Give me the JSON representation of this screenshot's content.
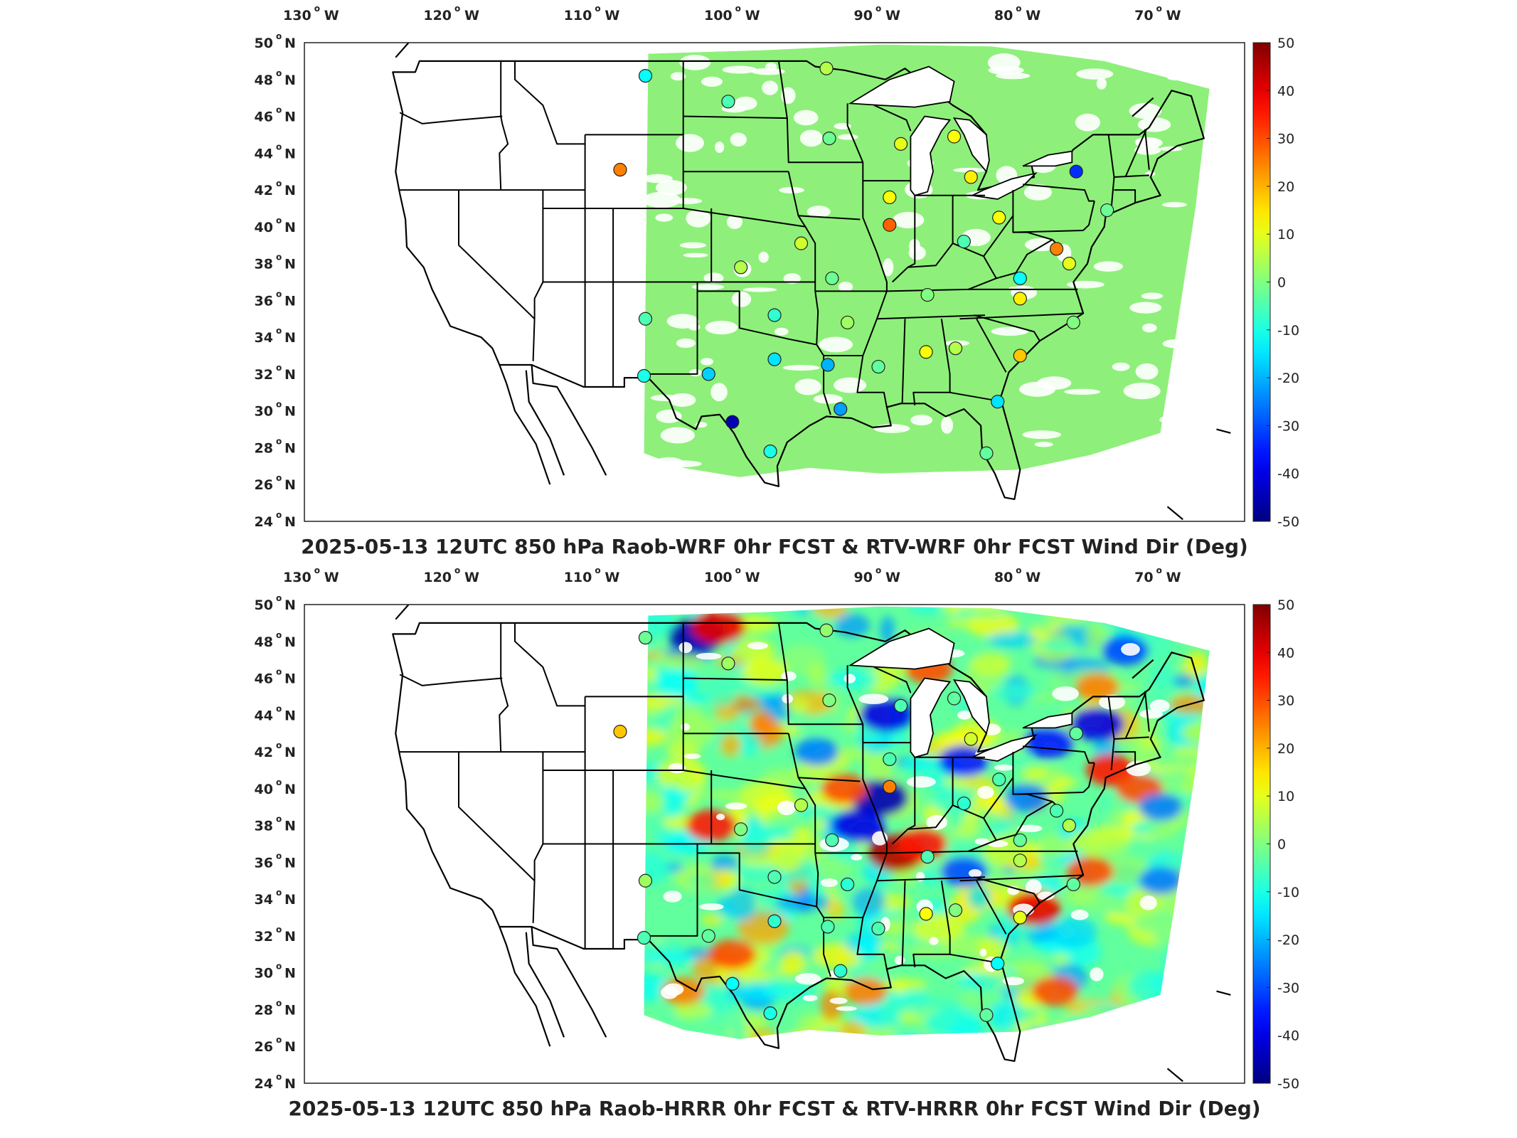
{
  "panels": [
    {
      "id": "top",
      "title": "2025-05-13 12UTC 850 hPa Raob-WRF 0hr FCST & RTV-WRF 0hr FCST Wind Dir (Deg)",
      "field_style": "uniform",
      "field_color": "#8ef07a",
      "stations": [
        {
          "lon": -106.7,
          "lat": 48.2,
          "v": -12
        },
        {
          "lon": -100.8,
          "lat": 46.8,
          "v": -5
        },
        {
          "lon": -108.5,
          "lat": 43.1,
          "v": 25
        },
        {
          "lon": -93.6,
          "lat": 44.8,
          "v": -2
        },
        {
          "lon": -93.8,
          "lat": 48.6,
          "v": 5
        },
        {
          "lon": -88.5,
          "lat": 44.5,
          "v": 10
        },
        {
          "lon": -84.7,
          "lat": 44.9,
          "v": 12
        },
        {
          "lon": -83.5,
          "lat": 42.7,
          "v": 14
        },
        {
          "lon": -76.0,
          "lat": 43.0,
          "v": -33
        },
        {
          "lon": -89.3,
          "lat": 41.6,
          "v": 12
        },
        {
          "lon": -89.3,
          "lat": 40.1,
          "v": 28
        },
        {
          "lon": -81.5,
          "lat": 40.5,
          "v": 12
        },
        {
          "lon": -84.0,
          "lat": 39.2,
          "v": -5
        },
        {
          "lon": -77.4,
          "lat": 38.8,
          "v": 25
        },
        {
          "lon": -76.5,
          "lat": 38.0,
          "v": 10
        },
        {
          "lon": -95.6,
          "lat": 39.1,
          "v": 8
        },
        {
          "lon": -99.9,
          "lat": 37.8,
          "v": 5
        },
        {
          "lon": -93.4,
          "lat": 37.2,
          "v": -2
        },
        {
          "lon": -80.0,
          "lat": 37.2,
          "v": -12
        },
        {
          "lon": -86.6,
          "lat": 36.3,
          "v": 0
        },
        {
          "lon": -80.0,
          "lat": 36.1,
          "v": 14
        },
        {
          "lon": -76.2,
          "lat": 34.8,
          "v": 0
        },
        {
          "lon": -106.7,
          "lat": 35.0,
          "v": -5
        },
        {
          "lon": -97.5,
          "lat": 35.2,
          "v": -8
        },
        {
          "lon": -92.3,
          "lat": 34.8,
          "v": 3
        },
        {
          "lon": -86.7,
          "lat": 33.2,
          "v": 12
        },
        {
          "lon": -84.6,
          "lat": 33.4,
          "v": 5
        },
        {
          "lon": -80.0,
          "lat": 33.0,
          "v": 18
        },
        {
          "lon": -106.8,
          "lat": 31.9,
          "v": -10
        },
        {
          "lon": -102.2,
          "lat": 32.0,
          "v": -17
        },
        {
          "lon": -97.5,
          "lat": 32.8,
          "v": -15
        },
        {
          "lon": -93.7,
          "lat": 32.5,
          "v": -20
        },
        {
          "lon": -90.1,
          "lat": 32.4,
          "v": -3
        },
        {
          "lon": -100.5,
          "lat": 29.4,
          "v": -45
        },
        {
          "lon": -92.8,
          "lat": 30.1,
          "v": -22
        },
        {
          "lon": -97.8,
          "lat": 27.8,
          "v": -10
        },
        {
          "lon": -81.6,
          "lat": 30.5,
          "v": -15
        },
        {
          "lon": -82.4,
          "lat": 27.7,
          "v": -3
        },
        {
          "lon": -73.8,
          "lat": 40.9,
          "v": -2
        }
      ]
    },
    {
      "id": "bottom",
      "title": "2025-05-13 12UTC 850 hPa Raob-HRRR 0hr FCST & RTV-HRRR 0hr FCST Wind Dir (Deg)",
      "field_style": "noisy",
      "stations": [
        {
          "lon": -106.7,
          "lat": 48.2,
          "v": -2
        },
        {
          "lon": -100.8,
          "lat": 46.8,
          "v": 3
        },
        {
          "lon": -108.5,
          "lat": 43.1,
          "v": 18
        },
        {
          "lon": -93.6,
          "lat": 44.8,
          "v": 0
        },
        {
          "lon": -93.8,
          "lat": 48.6,
          "v": 2
        },
        {
          "lon": -88.5,
          "lat": 44.5,
          "v": -5
        },
        {
          "lon": -84.7,
          "lat": 44.9,
          "v": -3
        },
        {
          "lon": -83.5,
          "lat": 42.7,
          "v": 8
        },
        {
          "lon": -76.0,
          "lat": 43.0,
          "v": -3
        },
        {
          "lon": -89.3,
          "lat": 41.6,
          "v": -5
        },
        {
          "lon": -89.3,
          "lat": 40.1,
          "v": 25
        },
        {
          "lon": -81.5,
          "lat": 40.5,
          "v": -5
        },
        {
          "lon": -84.0,
          "lat": 39.2,
          "v": -8
        },
        {
          "lon": -77.4,
          "lat": 38.8,
          "v": -5
        },
        {
          "lon": -76.5,
          "lat": 38.0,
          "v": 5
        },
        {
          "lon": -95.6,
          "lat": 39.1,
          "v": 5
        },
        {
          "lon": -99.9,
          "lat": 37.8,
          "v": 0
        },
        {
          "lon": -93.4,
          "lat": 37.2,
          "v": -5
        },
        {
          "lon": -80.0,
          "lat": 37.2,
          "v": -3
        },
        {
          "lon": -86.6,
          "lat": 36.3,
          "v": -5
        },
        {
          "lon": -80.0,
          "lat": 36.1,
          "v": 5
        },
        {
          "lon": -76.2,
          "lat": 34.8,
          "v": -3
        },
        {
          "lon": -106.7,
          "lat": 35.0,
          "v": 3
        },
        {
          "lon": -97.5,
          "lat": 35.2,
          "v": -5
        },
        {
          "lon": -92.3,
          "lat": 34.8,
          "v": -8
        },
        {
          "lon": -86.7,
          "lat": 33.2,
          "v": 12
        },
        {
          "lon": -84.6,
          "lat": 33.4,
          "v": 0
        },
        {
          "lon": -80.0,
          "lat": 33.0,
          "v": 10
        },
        {
          "lon": -106.8,
          "lat": 31.9,
          "v": -5
        },
        {
          "lon": -102.2,
          "lat": 32.0,
          "v": -3
        },
        {
          "lon": -97.5,
          "lat": 32.8,
          "v": -8
        },
        {
          "lon": -93.7,
          "lat": 32.5,
          "v": -5
        },
        {
          "lon": -90.1,
          "lat": 32.4,
          "v": -5
        },
        {
          "lon": -100.5,
          "lat": 29.4,
          "v": -12
        },
        {
          "lon": -92.8,
          "lat": 30.1,
          "v": -8
        },
        {
          "lon": -97.8,
          "lat": 27.8,
          "v": -10
        },
        {
          "lon": -81.6,
          "lat": 30.5,
          "v": -12
        },
        {
          "lon": -82.4,
          "lat": 27.7,
          "v": -3
        }
      ],
      "hotspots": [
        {
          "lon": -103.0,
          "lat": 48.3,
          "v": -45
        },
        {
          "lon": -101.5,
          "lat": 48.8,
          "v": 40
        },
        {
          "lon": -90.0,
          "lat": 39.5,
          "v": -45
        },
        {
          "lon": -88.8,
          "lat": 36.5,
          "v": 45
        },
        {
          "lon": -91.5,
          "lat": 38.0,
          "v": -40
        },
        {
          "lon": -87.0,
          "lat": 37.0,
          "v": 35
        },
        {
          "lon": -92.5,
          "lat": 40.0,
          "v": 30
        },
        {
          "lon": -89.5,
          "lat": 44.0,
          "v": -40
        },
        {
          "lon": -84.0,
          "lat": 41.5,
          "v": -35
        },
        {
          "lon": -78.0,
          "lat": 42.5,
          "v": -35
        },
        {
          "lon": -74.5,
          "lat": 43.5,
          "v": -40
        },
        {
          "lon": -73.5,
          "lat": 41.0,
          "v": 35
        },
        {
          "lon": -71.5,
          "lat": 40.0,
          "v": 30
        },
        {
          "lon": -70.0,
          "lat": 39.0,
          "v": -25
        },
        {
          "lon": -72.5,
          "lat": 47.5,
          "v": -30
        },
        {
          "lon": -74.5,
          "lat": 45.5,
          "v": 25
        },
        {
          "lon": -79.0,
          "lat": 33.5,
          "v": 40
        },
        {
          "lon": -75.0,
          "lat": 35.5,
          "v": 30
        },
        {
          "lon": -70.0,
          "lat": 35.0,
          "v": -25
        },
        {
          "lon": -102.0,
          "lat": 38.0,
          "v": 35
        },
        {
          "lon": -104.0,
          "lat": 29.0,
          "v": 25
        },
        {
          "lon": -100.5,
          "lat": 31.0,
          "v": 30
        },
        {
          "lon": -91.0,
          "lat": 29.0,
          "v": 25
        },
        {
          "lon": -84.0,
          "lat": 35.5,
          "v": -30
        },
        {
          "lon": -86.5,
          "lat": 46.5,
          "v": 30
        },
        {
          "lon": -94.5,
          "lat": 42.0,
          "v": -25
        },
        {
          "lon": -77.5,
          "lat": 29.0,
          "v": 30
        },
        {
          "lon": -79.5,
          "lat": 39.5,
          "v": -25
        }
      ]
    }
  ],
  "axes": {
    "lon_ticks": [
      {
        "val": -130,
        "label": "130"
      },
      {
        "val": -120,
        "label": "120"
      },
      {
        "val": -110,
        "label": "110"
      },
      {
        "val": -100,
        "label": "100"
      },
      {
        "val": -90,
        "label": "90"
      },
      {
        "val": -80,
        "label": "80"
      },
      {
        "val": -70,
        "label": "70"
      }
    ],
    "lon_suffix": "W",
    "lat_ticks": [
      {
        "val": 50,
        "label": "50"
      },
      {
        "val": 48,
        "label": "48"
      },
      {
        "val": 46,
        "label": "46"
      },
      {
        "val": 44,
        "label": "44"
      },
      {
        "val": 42,
        "label": "42"
      },
      {
        "val": 40,
        "label": "40"
      },
      {
        "val": 38,
        "label": "38"
      },
      {
        "val": 36,
        "label": "36"
      },
      {
        "val": 34,
        "label": "34"
      },
      {
        "val": 32,
        "label": "32"
      },
      {
        "val": 30,
        "label": "30"
      },
      {
        "val": 28,
        "label": "28"
      },
      {
        "val": 26,
        "label": "26"
      },
      {
        "val": 24,
        "label": "24"
      }
    ],
    "lat_suffix": "N",
    "degree_symbol": "o",
    "lon_range": [
      -131,
      -64
    ],
    "lat_range": [
      24,
      50
    ]
  },
  "colorbar": {
    "ticks": [
      "50",
      "40",
      "30",
      "20",
      "10",
      "0",
      "-10",
      "-20",
      "-30",
      "-40",
      "-50"
    ],
    "range": [
      -50,
      50
    ],
    "colormap": "jet"
  }
}
